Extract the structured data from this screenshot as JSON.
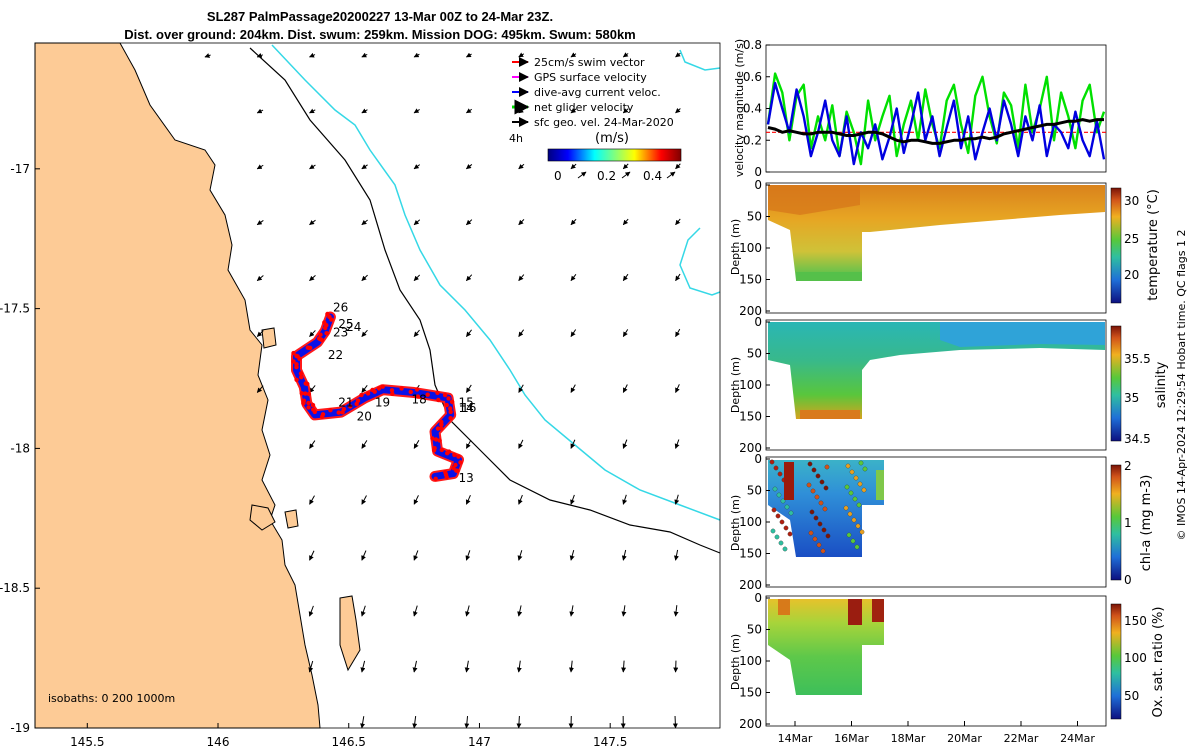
{
  "title": {
    "line1": "SL287 PalmPassage20200227 13-Mar 00Z to 24-Mar 23Z.",
    "line2": "Dist. over ground: 204km. Dist. swum: 259km. Mission DOG: 495km. Swum: 580km"
  },
  "chart_data": [
    {
      "type": "map",
      "id": "track-map",
      "x_ticks": [
        "145.5",
        "146",
        "146.5",
        "147",
        "147.5"
      ],
      "x_tick_values": [
        145.5,
        146,
        146.5,
        147,
        147.5
      ],
      "y_ticks": [
        "-17",
        "-17.5",
        "-18",
        "-18.5",
        "-19"
      ],
      "y_tick_values": [
        -17,
        -17.5,
        -18,
        -18.5,
        -19
      ],
      "xlim": [
        145.3,
        147.92
      ],
      "ylim": [
        -19.0,
        -16.55
      ],
      "legend": [
        {
          "label": "25cm/s swim vector",
          "color": "#ff0000"
        },
        {
          "label": "GPS surface velocity",
          "color": "#ff00ff"
        },
        {
          "label": "dive-avg current veloc.",
          "color": "#0000ff"
        },
        {
          "label": "net glider velocity",
          "color": "#00ff00"
        },
        {
          "label": "sfc geo. vel. 24-Mar-2020",
          "color": "#000000"
        }
      ],
      "legend_extra": "4h",
      "colorbar": {
        "title": "(m/s)",
        "ticks": [
          "0",
          "0.2",
          "0.4"
        ],
        "range": [
          0,
          0.5
        ]
      },
      "isobath_label": "isobaths: 0   200  1000m",
      "track_day_labels": [
        {
          "label": "26",
          "lon": 146.44,
          "lat": -17.51
        },
        {
          "label": "25",
          "lon": 146.46,
          "lat": -17.57
        },
        {
          "label": "24",
          "lon": 146.49,
          "lat": -17.58
        },
        {
          "label": "23",
          "lon": 146.44,
          "lat": -17.6
        },
        {
          "label": "22",
          "lon": 146.42,
          "lat": -17.68
        },
        {
          "label": "21",
          "lon": 146.46,
          "lat": -17.85
        },
        {
          "label": "20",
          "lon": 146.53,
          "lat": -17.9
        },
        {
          "label": "19",
          "lon": 146.6,
          "lat": -17.85
        },
        {
          "label": "18",
          "lon": 146.74,
          "lat": -17.84
        },
        {
          "label": "15",
          "lon": 146.92,
          "lat": -17.85
        },
        {
          "label": "16",
          "lon": 146.93,
          "lat": -17.87
        },
        {
          "label": "14",
          "lon": 146.92,
          "lat": -17.87
        },
        {
          "label": "13",
          "lon": 146.92,
          "lat": -18.12
        }
      ],
      "track": [
        [
          146.43,
          -17.53
        ],
        [
          146.41,
          -17.58
        ],
        [
          146.38,
          -17.62
        ],
        [
          146.3,
          -17.67
        ],
        [
          146.3,
          -17.72
        ],
        [
          146.33,
          -17.78
        ],
        [
          146.34,
          -17.84
        ],
        [
          146.37,
          -17.88
        ],
        [
          146.47,
          -17.87
        ],
        [
          146.56,
          -17.82
        ],
        [
          146.63,
          -17.79
        ],
        [
          146.75,
          -17.8
        ],
        [
          146.88,
          -17.82
        ],
        [
          146.89,
          -17.88
        ],
        [
          146.83,
          -17.94
        ],
        [
          146.84,
          -18.01
        ],
        [
          146.92,
          -18.04
        ],
        [
          146.9,
          -18.09
        ],
        [
          146.83,
          -18.1
        ]
      ]
    },
    {
      "type": "line",
      "id": "velocity-magnitude",
      "ylabel": "velocity magnitude (m/s)",
      "ylim": [
        0,
        0.8
      ],
      "y_ticks": [
        "0",
        "0.2",
        "0.4",
        "0.6",
        "0.8"
      ],
      "series": [
        {
          "name": "net glider velocity",
          "color": "#00e000",
          "values": [
            0.3,
            0.62,
            0.5,
            0.2,
            0.48,
            0.55,
            0.15,
            0.35,
            0.2,
            0.42,
            0.1,
            0.38,
            0.25,
            0.05,
            0.45,
            0.2,
            0.35,
            0.48,
            0.1,
            0.3,
            0.45,
            0.2,
            0.52,
            0.3,
            0.15,
            0.45,
            0.55,
            0.3,
            0.12,
            0.48,
            0.6,
            0.35,
            0.18,
            0.5,
            0.42,
            0.15,
            0.55,
            0.25,
            0.4,
            0.6,
            0.2,
            0.5,
            0.35,
            0.15,
            0.45,
            0.55,
            0.25,
            0.38
          ]
        },
        {
          "name": "dive-avg current veloc.",
          "color": "#0000e0",
          "values": [
            0.3,
            0.56,
            0.4,
            0.25,
            0.52,
            0.35,
            0.1,
            0.25,
            0.45,
            0.2,
            0.1,
            0.35,
            0.05,
            0.25,
            0.15,
            0.3,
            0.08,
            0.22,
            0.4,
            0.12,
            0.3,
            0.5,
            0.2,
            0.35,
            0.1,
            0.28,
            0.45,
            0.15,
            0.35,
            0.08,
            0.25,
            0.4,
            0.2,
            0.45,
            0.3,
            0.1,
            0.35,
            0.2,
            0.42,
            0.1,
            0.3,
            0.25,
            0.15,
            0.38,
            0.2,
            0.1,
            0.32,
            0.08
          ]
        },
        {
          "name": "swim speed",
          "color": "#000000",
          "values": [
            0.28,
            0.27,
            0.25,
            0.26,
            0.25,
            0.24,
            0.24,
            0.25,
            0.25,
            0.25,
            0.24,
            0.23,
            0.23,
            0.24,
            0.25,
            0.25,
            0.24,
            0.22,
            0.2,
            0.19,
            0.2,
            0.2,
            0.19,
            0.18,
            0.18,
            0.19,
            0.2,
            0.2,
            0.21,
            0.21,
            0.22,
            0.21,
            0.22,
            0.24,
            0.25,
            0.26,
            0.27,
            0.28,
            0.29,
            0.3,
            0.3,
            0.31,
            0.32,
            0.32,
            0.33,
            0.32,
            0.33,
            0.33
          ]
        },
        {
          "name": "25cm/s reference",
          "color": "#ff0000",
          "values": [
            0.25,
            0.25
          ]
        }
      ]
    },
    {
      "type": "heatmap",
      "id": "temperature-section",
      "ylabel": "Depth (m)",
      "y_ticks": [
        "0",
        "50",
        "100",
        "150",
        "200"
      ],
      "ylim": [
        200,
        0
      ],
      "colorbar_label": "temperature (°C)",
      "colorbar_ticks": [
        "20",
        "25",
        "30"
      ],
      "colorbar_range": [
        16,
        31.5
      ]
    },
    {
      "type": "heatmap",
      "id": "salinity-section",
      "ylabel": "Depth (m)",
      "y_ticks": [
        "0",
        "50",
        "100",
        "150",
        "200"
      ],
      "ylim": [
        200,
        0
      ],
      "colorbar_label": "salinity",
      "colorbar_ticks": [
        "34.5",
        "35",
        "35.5"
      ],
      "colorbar_range": [
        34.4,
        35.8
      ]
    },
    {
      "type": "heatmap",
      "id": "chla-section",
      "ylabel": "Depth (m)",
      "y_ticks": [
        "0",
        "50",
        "100",
        "150",
        "200"
      ],
      "ylim": [
        200,
        0
      ],
      "colorbar_label": "chl-a (mg m-3)",
      "colorbar_ticks": [
        "0",
        "1",
        "2"
      ],
      "colorbar_range": [
        0,
        2
      ]
    },
    {
      "type": "heatmap",
      "id": "oxygen-section",
      "ylabel": "Depth (m)",
      "y_ticks": [
        "0",
        "50",
        "100",
        "150",
        "200"
      ],
      "ylim": [
        200,
        0
      ],
      "x_ticks": [
        "14Mar",
        "16Mar",
        "18Mar",
        "20Mar",
        "22Mar",
        "24Mar"
      ],
      "colorbar_label": "Ox. sat. ratio (%)",
      "colorbar_ticks": [
        "50",
        "100",
        "150"
      ],
      "colorbar_range": [
        25,
        175
      ]
    }
  ],
  "footer": {
    "credit": "© IMOS 14-Apr-2024 12:29:54 Hobart time. QC flags 1  2"
  }
}
